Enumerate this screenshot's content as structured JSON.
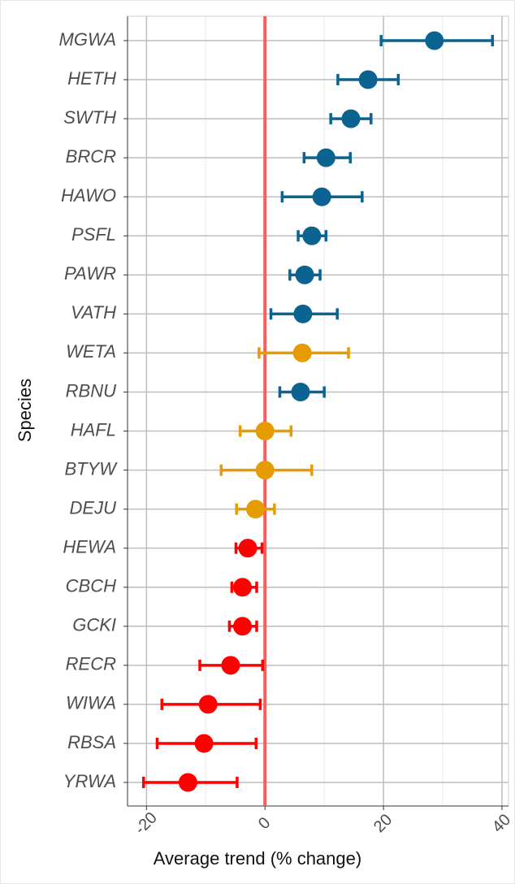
{
  "chart_data": {
    "type": "dot-errorbar",
    "x_label": "Average trend (% change)",
    "y_label": "Species",
    "categories": [
      "MGWA",
      "HETH",
      "SWTH",
      "BRCR",
      "HAWO",
      "PSFL",
      "PAWR",
      "VATH",
      "WETA",
      "RBNU",
      "HAFL",
      "BTYW",
      "DEJU",
      "HEWA",
      "CBCH",
      "GCKI",
      "RECR",
      "WIWA",
      "RBSA",
      "YRWA"
    ],
    "values": [
      28.6,
      17.4,
      14.5,
      10.3,
      9.6,
      7.9,
      6.7,
      6.4,
      6.3,
      6.0,
      0.0,
      0.0,
      -1.6,
      -2.9,
      -3.8,
      -3.8,
      -5.8,
      -9.6,
      -10.3,
      -13.0
    ],
    "lower": [
      19.6,
      12.3,
      11.1,
      6.6,
      2.9,
      5.6,
      4.2,
      1.0,
      -1.0,
      2.5,
      -4.2,
      -7.4,
      -4.8,
      -4.9,
      -5.6,
      -6.0,
      -11.0,
      -17.4,
      -18.2,
      -20.5
    ],
    "upper": [
      38.4,
      22.5,
      17.9,
      14.4,
      16.4,
      10.3,
      9.3,
      12.2,
      14.1,
      10.0,
      4.4,
      7.9,
      1.6,
      -0.5,
      -1.4,
      -1.4,
      -0.4,
      -0.8,
      -1.5,
      -4.7
    ],
    "colors": [
      "#0b6392",
      "#0b6392",
      "#0b6392",
      "#0b6392",
      "#0b6392",
      "#0b6392",
      "#0b6392",
      "#0b6392",
      "#e69b00",
      "#0b6392",
      "#e69b00",
      "#e69b00",
      "#e69b00",
      "#ff0000",
      "#ff0000",
      "#ff0000",
      "#ff0000",
      "#ff0000",
      "#ff0000",
      "#ff0000"
    ],
    "xlim": [
      -23.2,
      41.1
    ],
    "xticks": [
      -20,
      0,
      20,
      40
    ],
    "xminor": [
      -10,
      10,
      30
    ],
    "grid": true,
    "reference_line": {
      "value": 0,
      "color": "#ff5a5a"
    }
  }
}
